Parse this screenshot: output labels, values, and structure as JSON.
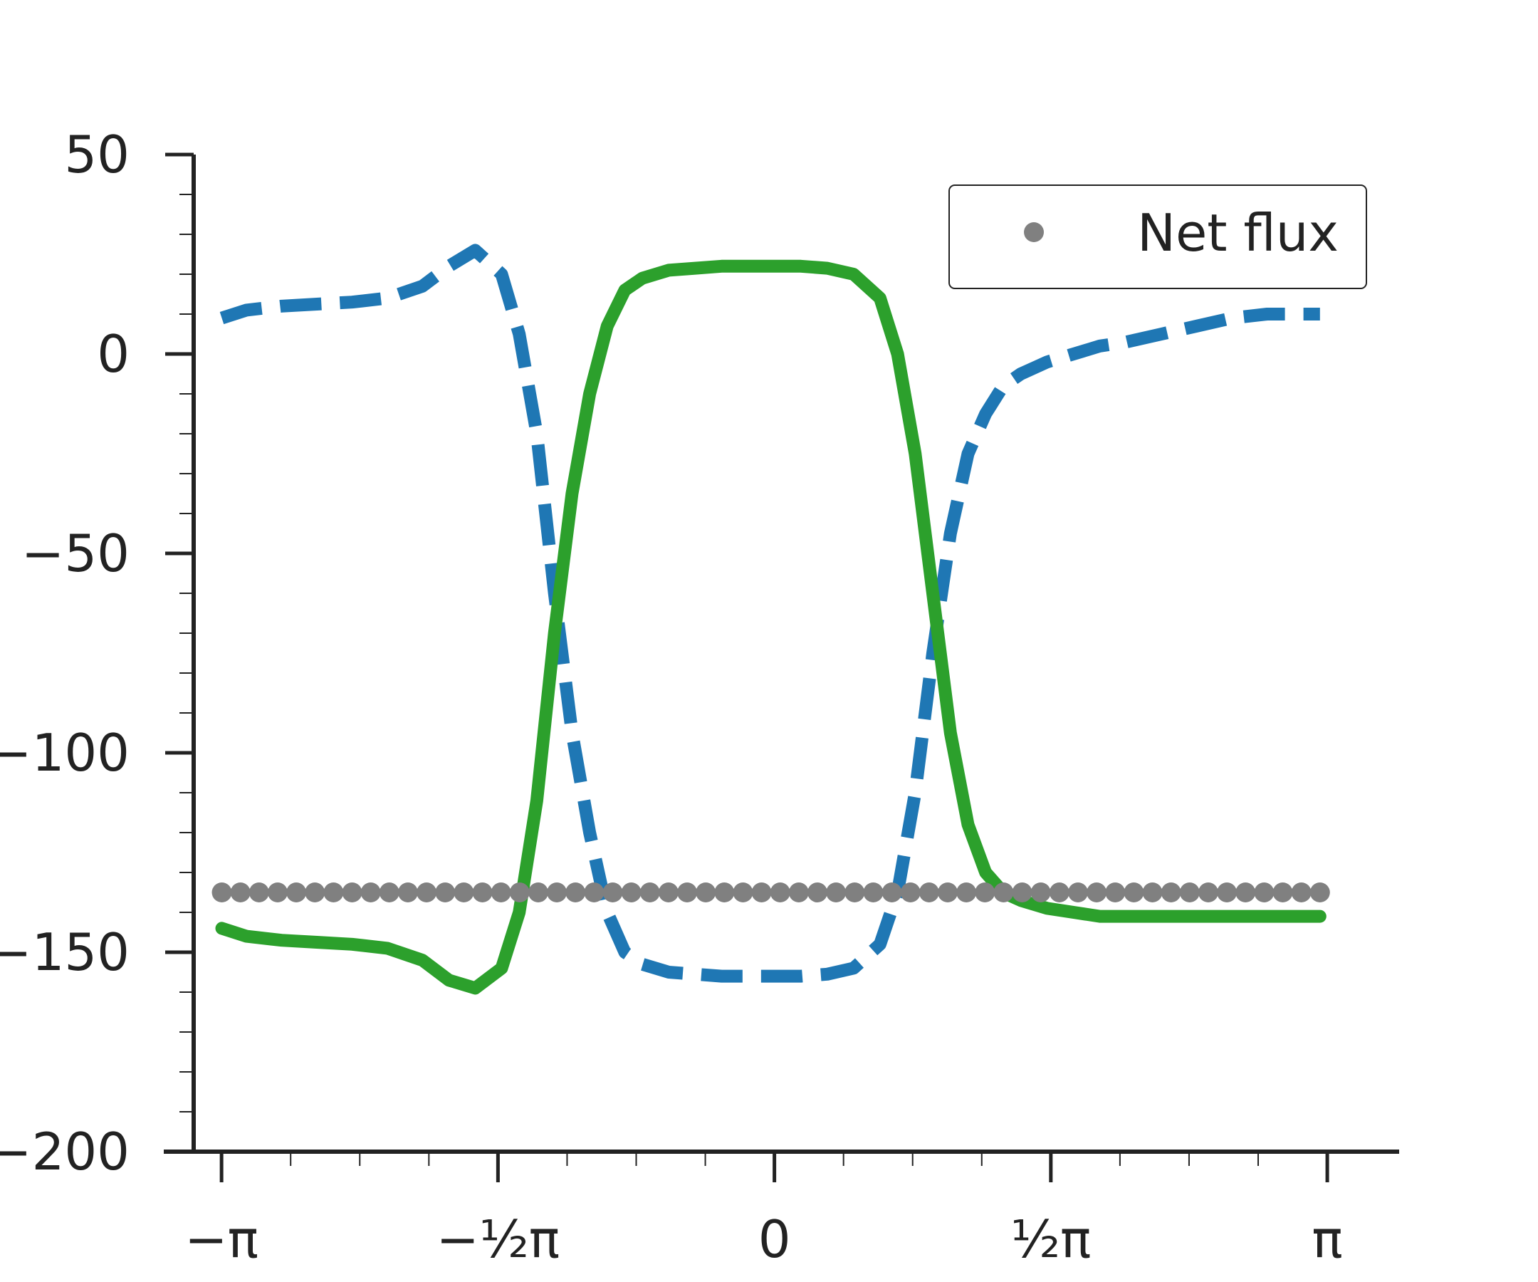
{
  "chart_data": {
    "type": "line",
    "xlim": [
      -3.3,
      3.55
    ],
    "ylim": [
      -200,
      50
    ],
    "x_ticks": [
      {
        "value": -3.14159,
        "label": "−π"
      },
      {
        "value": -1.5708,
        "label": "−½π"
      },
      {
        "value": 0,
        "label": "0"
      },
      {
        "value": 1.5708,
        "label": "½π"
      },
      {
        "value": 3.14159,
        "label": "π"
      }
    ],
    "y_ticks": [
      {
        "value": 50,
        "label": "50"
      },
      {
        "value": 0,
        "label": "0"
      },
      {
        "value": -50,
        "label": "−50"
      },
      {
        "value": -100,
        "label": "−100"
      },
      {
        "value": -150,
        "label": "−150"
      },
      {
        "value": -200,
        "label": "−200"
      }
    ],
    "legend": {
      "position": "top-right",
      "entries": [
        "Net flux"
      ]
    },
    "series": [
      {
        "style": "dashed",
        "color": "#1f77b4",
        "x": [
          -3.14,
          -3.0,
          -2.8,
          -2.6,
          -2.4,
          -2.2,
          -2.0,
          -1.85,
          -1.7,
          -1.55,
          -1.45,
          -1.35,
          -1.25,
          -1.15,
          -1.05,
          -0.95,
          -0.85,
          -0.75,
          -0.6,
          -0.45,
          -0.3,
          -0.15,
          0.0,
          0.15,
          0.3,
          0.45,
          0.6,
          0.7,
          0.8,
          0.9,
          1.0,
          1.1,
          1.2,
          1.3,
          1.4,
          1.55,
          1.7,
          1.85,
          2.0,
          2.2,
          2.4,
          2.6,
          2.8,
          3.0,
          3.1
        ],
        "y": [
          9,
          11,
          12,
          12.5,
          13,
          14,
          17,
          22,
          26,
          20,
          5,
          -20,
          -60,
          -95,
          -120,
          -140,
          -150,
          -153,
          -155,
          -155.5,
          -156,
          -156,
          -156,
          -156,
          -155.5,
          -154,
          -148,
          -135,
          -110,
          -75,
          -45,
          -25,
          -15,
          -8,
          -5,
          -2,
          0,
          2,
          3,
          5,
          7,
          9,
          10,
          10,
          10
        ]
      },
      {
        "style": "solid",
        "color": "#2ca02c",
        "x": [
          -3.14,
          -3.0,
          -2.8,
          -2.6,
          -2.4,
          -2.2,
          -2.0,
          -1.85,
          -1.7,
          -1.55,
          -1.45,
          -1.35,
          -1.25,
          -1.15,
          -1.05,
          -0.95,
          -0.85,
          -0.75,
          -0.6,
          -0.45,
          -0.3,
          -0.15,
          0.0,
          0.15,
          0.3,
          0.45,
          0.6,
          0.7,
          0.8,
          0.9,
          1.0,
          1.1,
          1.2,
          1.3,
          1.4,
          1.55,
          1.7,
          1.85,
          2.0,
          2.2,
          2.4,
          2.6,
          2.8,
          3.0,
          3.1
        ],
        "y": [
          -144,
          -146,
          -147,
          -147.5,
          -148,
          -149,
          -152,
          -157,
          -159,
          -154,
          -140,
          -112,
          -70,
          -35,
          -10,
          7,
          16,
          19,
          21,
          21.5,
          22,
          22,
          22,
          22,
          21.5,
          20,
          14,
          0,
          -25,
          -60,
          -95,
          -118,
          -130,
          -135,
          -137,
          -139,
          -140,
          -141,
          -141,
          -141,
          -141,
          -141,
          -141,
          -141,
          -141
        ]
      },
      {
        "name": "Net flux",
        "style": "dots",
        "color": "#808080",
        "x_start": -3.14,
        "x_end": 3.1,
        "count": 60,
        "y": -135
      }
    ]
  }
}
